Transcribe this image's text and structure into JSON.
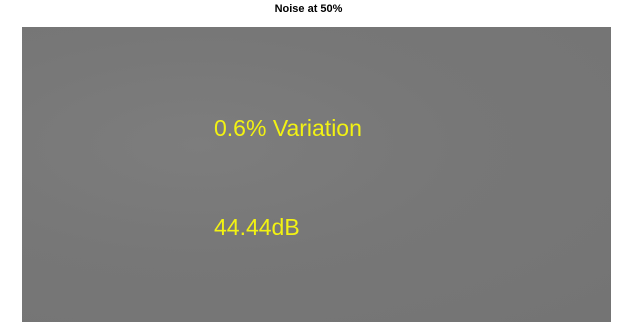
{
  "title": "Noise at 50%",
  "annotations": [
    "0.6% Variation",
    "44.44dB"
  ]
}
